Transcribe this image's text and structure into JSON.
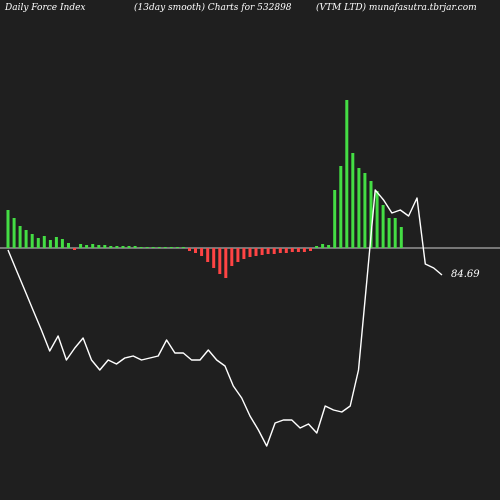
{
  "header": {
    "left": "Daily Force  Index",
    "center": "(13day smooth) Charts for 532898",
    "right": "(VTM LTD) munafasutra.tbrjar.com"
  },
  "colors": {
    "background": "#1f1f1f",
    "positive_bar": "#44dd44",
    "negative_bar": "#ff4444",
    "line": "#ffffff",
    "zero_line": "#cfcfcf"
  },
  "chart_data": {
    "type": "bar",
    "title": "",
    "last_value_label": "84.69",
    "series": [
      {
        "kind": "bar",
        "values": [
          38,
          30,
          22,
          18,
          14,
          10,
          12,
          8,
          11,
          9,
          5,
          -2,
          4,
          3,
          4,
          3,
          3,
          2,
          2,
          2,
          2,
          2,
          1,
          1,
          1,
          1,
          1,
          1,
          1,
          1,
          -3,
          -5,
          -8,
          -14,
          -20,
          -26,
          -30,
          -18,
          -14,
          -11,
          -9,
          -8,
          -7,
          -6,
          -6,
          -5,
          -5,
          -4,
          -4,
          -4,
          -3,
          2,
          4,
          3,
          58,
          82,
          148,
          95,
          80,
          75,
          67,
          57,
          43,
          30,
          30,
          21
        ]
      },
      {
        "kind": "line",
        "values": [
          -2,
          -22,
          -42,
          -62,
          -82,
          -103,
          -88,
          -112,
          -100,
          -90,
          -112,
          -122,
          -112,
          -116,
          -110,
          -108,
          -112,
          -110,
          -108,
          -92,
          -105,
          -105,
          -112,
          -112,
          -102,
          -112,
          -118,
          -138,
          -150,
          -168,
          -182,
          -198,
          -175,
          -172,
          -172,
          -180,
          -176,
          -185,
          -158,
          -162,
          -164,
          -158,
          -122,
          -32,
          58,
          48,
          35,
          38,
          32,
          50,
          -16,
          -20,
          -27
        ]
      }
    ]
  }
}
